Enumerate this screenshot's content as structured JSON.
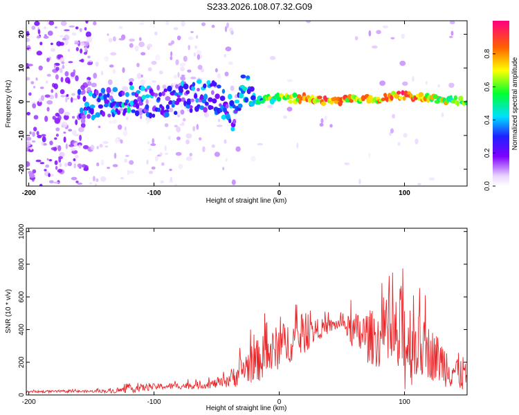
{
  "figure": {
    "title": "S233.2026.108.07.32.G09"
  },
  "chart_data": [
    {
      "type": "heatmap",
      "title": "",
      "xlabel": "Height of straight line (km)",
      "ylabel": "Frequency (Hz)",
      "xlim": [
        -202,
        150
      ],
      "ylim": [
        -25,
        24
      ],
      "x_ticks": [
        -200,
        -100,
        0,
        100
      ],
      "x_tick_labels": [
        "-200",
        "-100",
        "0",
        "100"
      ],
      "y_ticks": [
        -20,
        -10,
        0,
        10,
        20
      ],
      "y_tick_labels": [
        "-20",
        "-10",
        "0",
        "10",
        "20"
      ],
      "colorbar": {
        "label": "Normalized spectral amplitude",
        "range": [
          0,
          1
        ],
        "ticks": [
          0.0,
          0.2,
          0.4,
          0.6,
          0.8
        ],
        "tick_labels": [
          "0.0",
          "0.2",
          "0.4",
          "0.6",
          "0.8"
        ]
      },
      "ridge": {
        "x": [
          -160,
          -140,
          -120,
          -100,
          -80,
          -60,
          -45,
          -35,
          -30,
          -20,
          0,
          20,
          40,
          60,
          80,
          100,
          120,
          150
        ],
        "frequency": [
          -1,
          0,
          1,
          0,
          1,
          2,
          0,
          -6,
          6,
          0,
          1,
          1,
          0,
          1,
          1,
          2,
          1,
          0
        ],
        "amplitude": [
          0.3,
          0.3,
          0.4,
          0.3,
          0.3,
          0.3,
          0.35,
          0.3,
          0.4,
          0.45,
          0.7,
          0.8,
          0.85,
          0.75,
          0.8,
          0.85,
          0.7,
          0.6
        ]
      }
    },
    {
      "type": "line",
      "title": "",
      "xlabel": "Height of straight line (km)",
      "ylabel": "SNR (10 * v/v)",
      "xlim": [
        -202,
        150
      ],
      "ylim": [
        0,
        1020
      ],
      "x_ticks": [
        -200,
        -100,
        0,
        100
      ],
      "x_tick_labels": [
        "-200",
        "-100",
        "0",
        "100"
      ],
      "y_ticks": [
        0,
        200,
        400,
        600,
        800,
        1000
      ],
      "y_tick_labels": [
        "0",
        "200",
        "400",
        "600",
        "800",
        "1000"
      ],
      "series": [
        {
          "name": "SNR",
          "color": "#e8272a",
          "envelope": {
            "x": [
              -202,
              -150,
              -130,
              -115,
              -100,
              -80,
              -60,
              -45,
              -35,
              -25,
              -15,
              -5,
              0,
              10,
              20,
              30,
              40,
              50,
              60,
              70,
              80,
              90,
              98,
              110,
              120,
              130,
              140,
              150
            ],
            "base": [
              20,
              22,
              25,
              40,
              50,
              55,
              60,
              75,
              120,
              180,
              220,
              260,
              300,
              330,
              360,
              400,
              420,
              440,
              380,
              360,
              340,
              330,
              340,
              300,
              260,
              200,
              150,
              120
            ],
            "amp": [
              12,
              14,
              25,
              45,
              35,
              35,
              40,
              60,
              130,
              200,
              250,
              260,
              250,
              230,
              200,
              120,
              80,
              60,
              220,
              300,
              320,
              380,
              650,
              380,
              300,
              260,
              220,
              200
            ]
          }
        }
      ]
    }
  ]
}
